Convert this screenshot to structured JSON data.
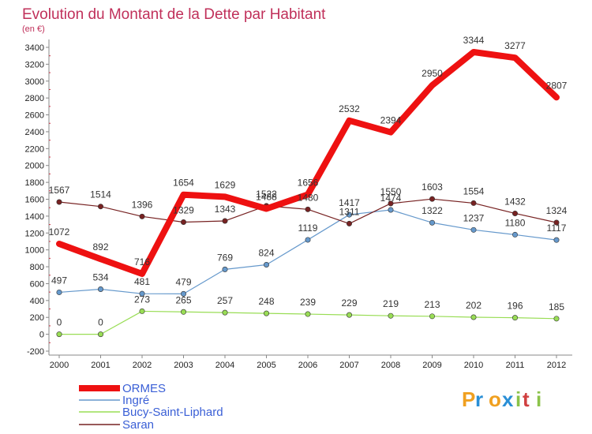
{
  "chart_data": {
    "type": "line",
    "title": "Evolution du Montant de la Dette par Habitant",
    "subtitle": "(en €)",
    "xlabel": "",
    "ylabel": "",
    "ylim": [
      -200,
      3400
    ],
    "yticks": [
      -200,
      0,
      200,
      400,
      600,
      800,
      1000,
      1200,
      1400,
      1600,
      1800,
      2000,
      2200,
      2400,
      2600,
      2800,
      3000,
      3200,
      3400
    ],
    "categories": [
      "2000",
      "2001",
      "2002",
      "2003",
      "2004",
      "2005",
      "2006",
      "2007",
      "2008",
      "2009",
      "2010",
      "2011",
      "2012"
    ],
    "grid": false,
    "legend_position": "bottom-left",
    "series": [
      {
        "name": "ORMES",
        "color": "#ee1111",
        "values": [
          1072,
          892,
          716,
          1654,
          1629,
          1488,
          1656,
          2532,
          2394,
          2950,
          3344,
          3277,
          2807
        ]
      },
      {
        "name": "Ingré",
        "color": "#6699cc",
        "values": [
          497,
          534,
          481,
          479,
          769,
          824,
          1119,
          1417,
          1474,
          1322,
          1237,
          1180,
          1117
        ]
      },
      {
        "name": "Bucy-Saint-Liphard",
        "color": "#99dd55",
        "values": [
          0,
          0,
          273,
          265,
          257,
          248,
          239,
          229,
          219,
          213,
          202,
          196,
          185
        ]
      },
      {
        "name": "Saran",
        "color": "#772222",
        "values": [
          1567,
          1514,
          1396,
          1329,
          1343,
          1522,
          1480,
          1311,
          1550,
          1603,
          1554,
          1432,
          1324
        ]
      }
    ]
  },
  "logo": {
    "text": "Proxiti"
  }
}
